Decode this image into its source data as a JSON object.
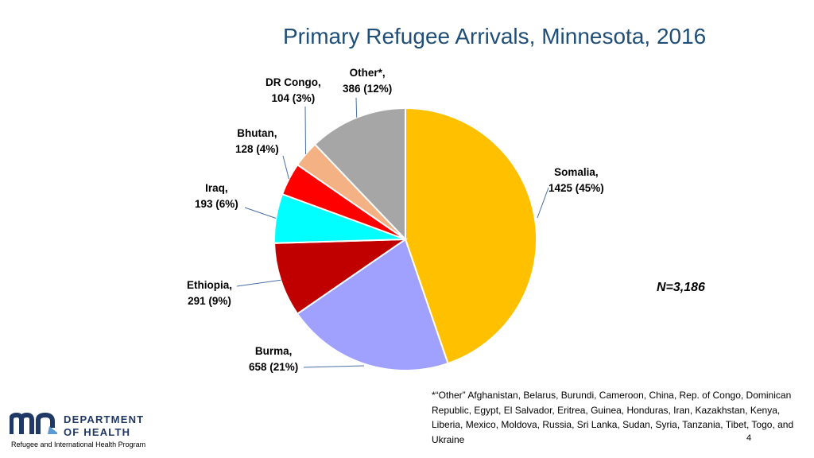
{
  "title": "Primary Refugee Arrivals, Minnesota, 2016",
  "n_label": "N=3,186",
  "footnote": "*“Other” Afghanistan, Belarus, Burundi, Cameroon, China, Rep. of Congo, Dominican Republic, Egypt, El Salvador, Eritrea, Guinea, Honduras, Iran, Kazakhstan, Kenya, Liberia, Mexico, Moldova, Russia, Sri Lanka, Sudan, Syria, Tanzania, Tibet, Togo, and Ukraine",
  "page_number": "4",
  "logo": {
    "mark": "mn",
    "line1": "DEPARTMENT",
    "line2": "OF HEALTH",
    "program": "Refugee and International Health Program",
    "color": "#1f3864"
  },
  "chart_data": {
    "type": "pie",
    "title": "Primary Refugee Arrivals, Minnesota, 2016",
    "total": 3186,
    "slices": [
      {
        "name": "Somalia,",
        "value": 1425,
        "value_label": "1425 (45%)",
        "color": "#ffc000"
      },
      {
        "name": "Burma,",
        "value": 658,
        "value_label": "658 (21%)",
        "color": "#a0a0ff"
      },
      {
        "name": "Ethiopia,",
        "value": 291,
        "value_label": "291 (9%)",
        "color": "#c00000"
      },
      {
        "name": "Iraq,",
        "value": 193,
        "value_label": "193 (6%)",
        "color": "#00ffff"
      },
      {
        "name": "Bhutan,",
        "value": 128,
        "value_label": "128 (4%)",
        "color": "#ff0000"
      },
      {
        "name": "DR Congo,",
        "value": 104,
        "value_label": "104 (3%)",
        "color": "#f4b183"
      },
      {
        "name": "Other*,",
        "value": 386,
        "value_label": "386 (12%)",
        "color": "#a6a6a6"
      }
    ]
  }
}
